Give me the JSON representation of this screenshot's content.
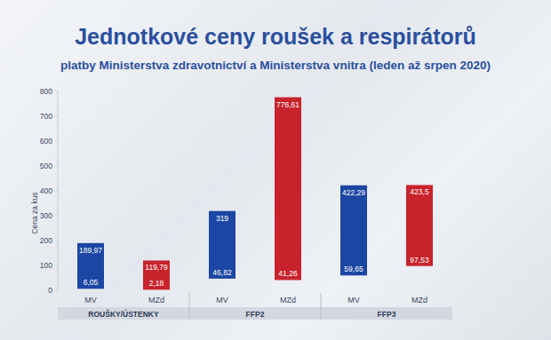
{
  "chart_data": {
    "type": "bar",
    "title": "Jednotkové ceny roušek a respirátorů",
    "subtitle": "platby Ministerstva zdravotnictví a Ministerstva vnitra (leden až srpen 2020)",
    "y_label": "Cena za kus",
    "categories": [
      "MV",
      "MZd",
      "MV",
      "MZd",
      "MV",
      "MZd"
    ],
    "group_labels": [
      "ROUŠKY/ÚSTENKY",
      "FFP2",
      "FFP3"
    ],
    "low": [
      6.05,
      2.18,
      46.82,
      41.26,
      59.65,
      97.53
    ],
    "low_labels": [
      "6,05",
      "2,18",
      "46,82",
      "41,26",
      "59,65",
      "97,53"
    ],
    "values": [
      189.97,
      119.79,
      319,
      776.61,
      422.29,
      423.5
    ],
    "value_labels": [
      "189,97",
      "119,79",
      "319",
      "776,61",
      "422,29",
      "423,5"
    ],
    "colors": [
      "#1c46a3",
      "#c8222c",
      "#1c46a3",
      "#c8222c",
      "#1c46a3",
      "#c8222c"
    ],
    "ylim": [
      0,
      800
    ],
    "yticks": [
      0,
      100,
      200,
      300,
      400,
      500,
      600,
      700,
      800
    ],
    "grid": false,
    "data_labels": true
  }
}
